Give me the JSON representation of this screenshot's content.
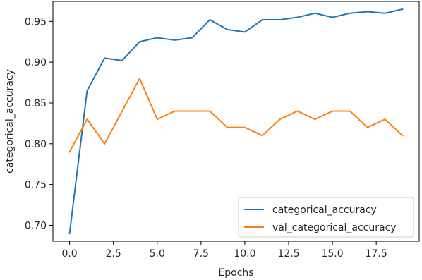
{
  "chart_data": {
    "type": "line",
    "title": "",
    "xlabel": "Epochs",
    "ylabel": "categorical_accuracy",
    "xlim": [
      -0.95,
      19.95
    ],
    "ylim": [
      0.6805,
      0.9745
    ],
    "xticks": [
      0.0,
      2.5,
      5.0,
      7.5,
      10.0,
      12.5,
      15.0,
      17.5
    ],
    "yticks": [
      0.7,
      0.75,
      0.8,
      0.85,
      0.9,
      0.95
    ],
    "grid": false,
    "legend_position": "lower-right",
    "x": [
      0,
      1,
      2,
      3,
      4,
      5,
      6,
      7,
      8,
      9,
      10,
      11,
      12,
      13,
      14,
      15,
      16,
      17,
      18,
      19
    ],
    "series": [
      {
        "name": "categorical_accuracy",
        "color": "#1f77b4",
        "values": [
          0.69,
          0.865,
          0.905,
          0.902,
          0.925,
          0.93,
          0.927,
          0.93,
          0.952,
          0.94,
          0.937,
          0.952,
          0.952,
          0.955,
          0.96,
          0.955,
          0.96,
          0.962,
          0.96,
          0.965
        ]
      },
      {
        "name": "val_categorical_accuracy",
        "color": "#ff7f0e",
        "values": [
          0.79,
          0.83,
          0.8,
          0.84,
          0.88,
          0.83,
          0.84,
          0.84,
          0.84,
          0.82,
          0.82,
          0.81,
          0.83,
          0.84,
          0.83,
          0.84,
          0.84,
          0.82,
          0.83,
          0.81
        ]
      }
    ]
  }
}
